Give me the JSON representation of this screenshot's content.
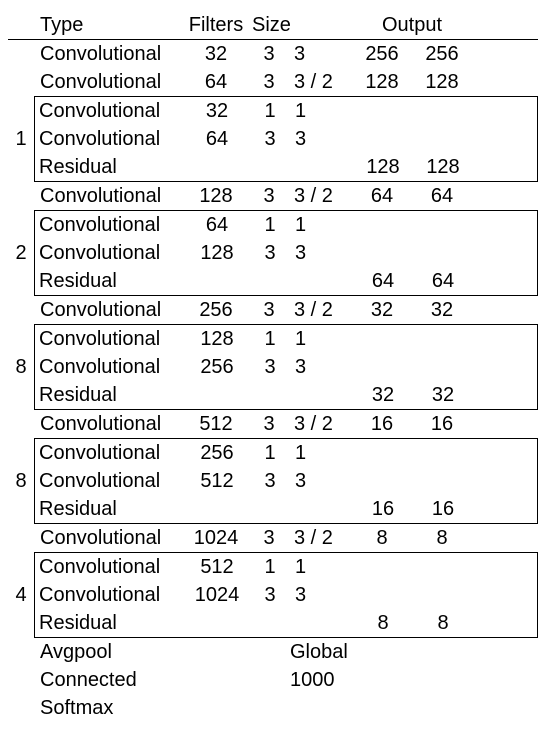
{
  "headers": {
    "type": "Type",
    "filters": "Filters",
    "size": "Size",
    "output": "Output"
  },
  "layers": [
    {
      "kind": "row",
      "type": "Convolutional",
      "filters": "32",
      "s1": "3",
      "s2": "3",
      "o1": "256",
      "o2": "256"
    },
    {
      "kind": "row",
      "type": "Convolutional",
      "filters": "64",
      "s1": "3",
      "s2": "3 / 2",
      "o1": "128",
      "o2": "128"
    },
    {
      "kind": "block",
      "repeat": "1",
      "rows": [
        {
          "type": "Convolutional",
          "filters": "32",
          "s1": "1",
          "s2": "1",
          "o1": "",
          "o2": ""
        },
        {
          "type": "Convolutional",
          "filters": "64",
          "s1": "3",
          "s2": "3",
          "o1": "",
          "o2": ""
        },
        {
          "type": "Residual",
          "filters": "",
          "s1": "",
          "s2": "",
          "o1": "128",
          "o2": "128"
        }
      ]
    },
    {
      "kind": "row",
      "type": "Convolutional",
      "filters": "128",
      "s1": "3",
      "s2": "3 / 2",
      "o1": "64",
      "o2": "64"
    },
    {
      "kind": "block",
      "repeat": "2",
      "rows": [
        {
          "type": "Convolutional",
          "filters": "64",
          "s1": "1",
          "s2": "1",
          "o1": "",
          "o2": ""
        },
        {
          "type": "Convolutional",
          "filters": "128",
          "s1": "3",
          "s2": "3",
          "o1": "",
          "o2": ""
        },
        {
          "type": "Residual",
          "filters": "",
          "s1": "",
          "s2": "",
          "o1": "64",
          "o2": "64"
        }
      ]
    },
    {
      "kind": "row",
      "type": "Convolutional",
      "filters": "256",
      "s1": "3",
      "s2": "3 / 2",
      "o1": "32",
      "o2": "32"
    },
    {
      "kind": "block",
      "repeat": "8",
      "rows": [
        {
          "type": "Convolutional",
          "filters": "128",
          "s1": "1",
          "s2": "1",
          "o1": "",
          "o2": ""
        },
        {
          "type": "Convolutional",
          "filters": "256",
          "s1": "3",
          "s2": "3",
          "o1": "",
          "o2": ""
        },
        {
          "type": "Residual",
          "filters": "",
          "s1": "",
          "s2": "",
          "o1": "32",
          "o2": "32"
        }
      ]
    },
    {
      "kind": "row",
      "type": "Convolutional",
      "filters": "512",
      "s1": "3",
      "s2": "3 / 2",
      "o1": "16",
      "o2": "16"
    },
    {
      "kind": "block",
      "repeat": "8",
      "rows": [
        {
          "type": "Convolutional",
          "filters": "256",
          "s1": "1",
          "s2": "1",
          "o1": "",
          "o2": ""
        },
        {
          "type": "Convolutional",
          "filters": "512",
          "s1": "3",
          "s2": "3",
          "o1": "",
          "o2": ""
        },
        {
          "type": "Residual",
          "filters": "",
          "s1": "",
          "s2": "",
          "o1": "16",
          "o2": "16"
        }
      ]
    },
    {
      "kind": "row",
      "type": "Convolutional",
      "filters": "1024",
      "s1": "3",
      "s2": "3 / 2",
      "o1": "8",
      "o2": "8"
    },
    {
      "kind": "block",
      "repeat": "4",
      "rows": [
        {
          "type": "Convolutional",
          "filters": "512",
          "s1": "1",
          "s2": "1",
          "o1": "",
          "o2": ""
        },
        {
          "type": "Convolutional",
          "filters": "1024",
          "s1": "3",
          "s2": "3",
          "o1": "",
          "o2": ""
        },
        {
          "type": "Residual",
          "filters": "",
          "s1": "",
          "s2": "",
          "o1": "8",
          "o2": "8"
        }
      ]
    },
    {
      "kind": "row",
      "type": "Avgpool",
      "filters": "",
      "s1": "",
      "s2": "Global",
      "o1": "",
      "o2": "",
      "s2span": true
    },
    {
      "kind": "row",
      "type": "Connected",
      "filters": "",
      "s1": "",
      "s2": "1000",
      "o1": "",
      "o2": "",
      "s2span": true
    },
    {
      "kind": "row",
      "type": "Softmax",
      "filters": "",
      "s1": "",
      "s2": "",
      "o1": "",
      "o2": ""
    }
  ],
  "style": {
    "font_size_pt": 15,
    "border_color": "#000000",
    "background_color": "#ffffff",
    "text_color": "#000000"
  }
}
